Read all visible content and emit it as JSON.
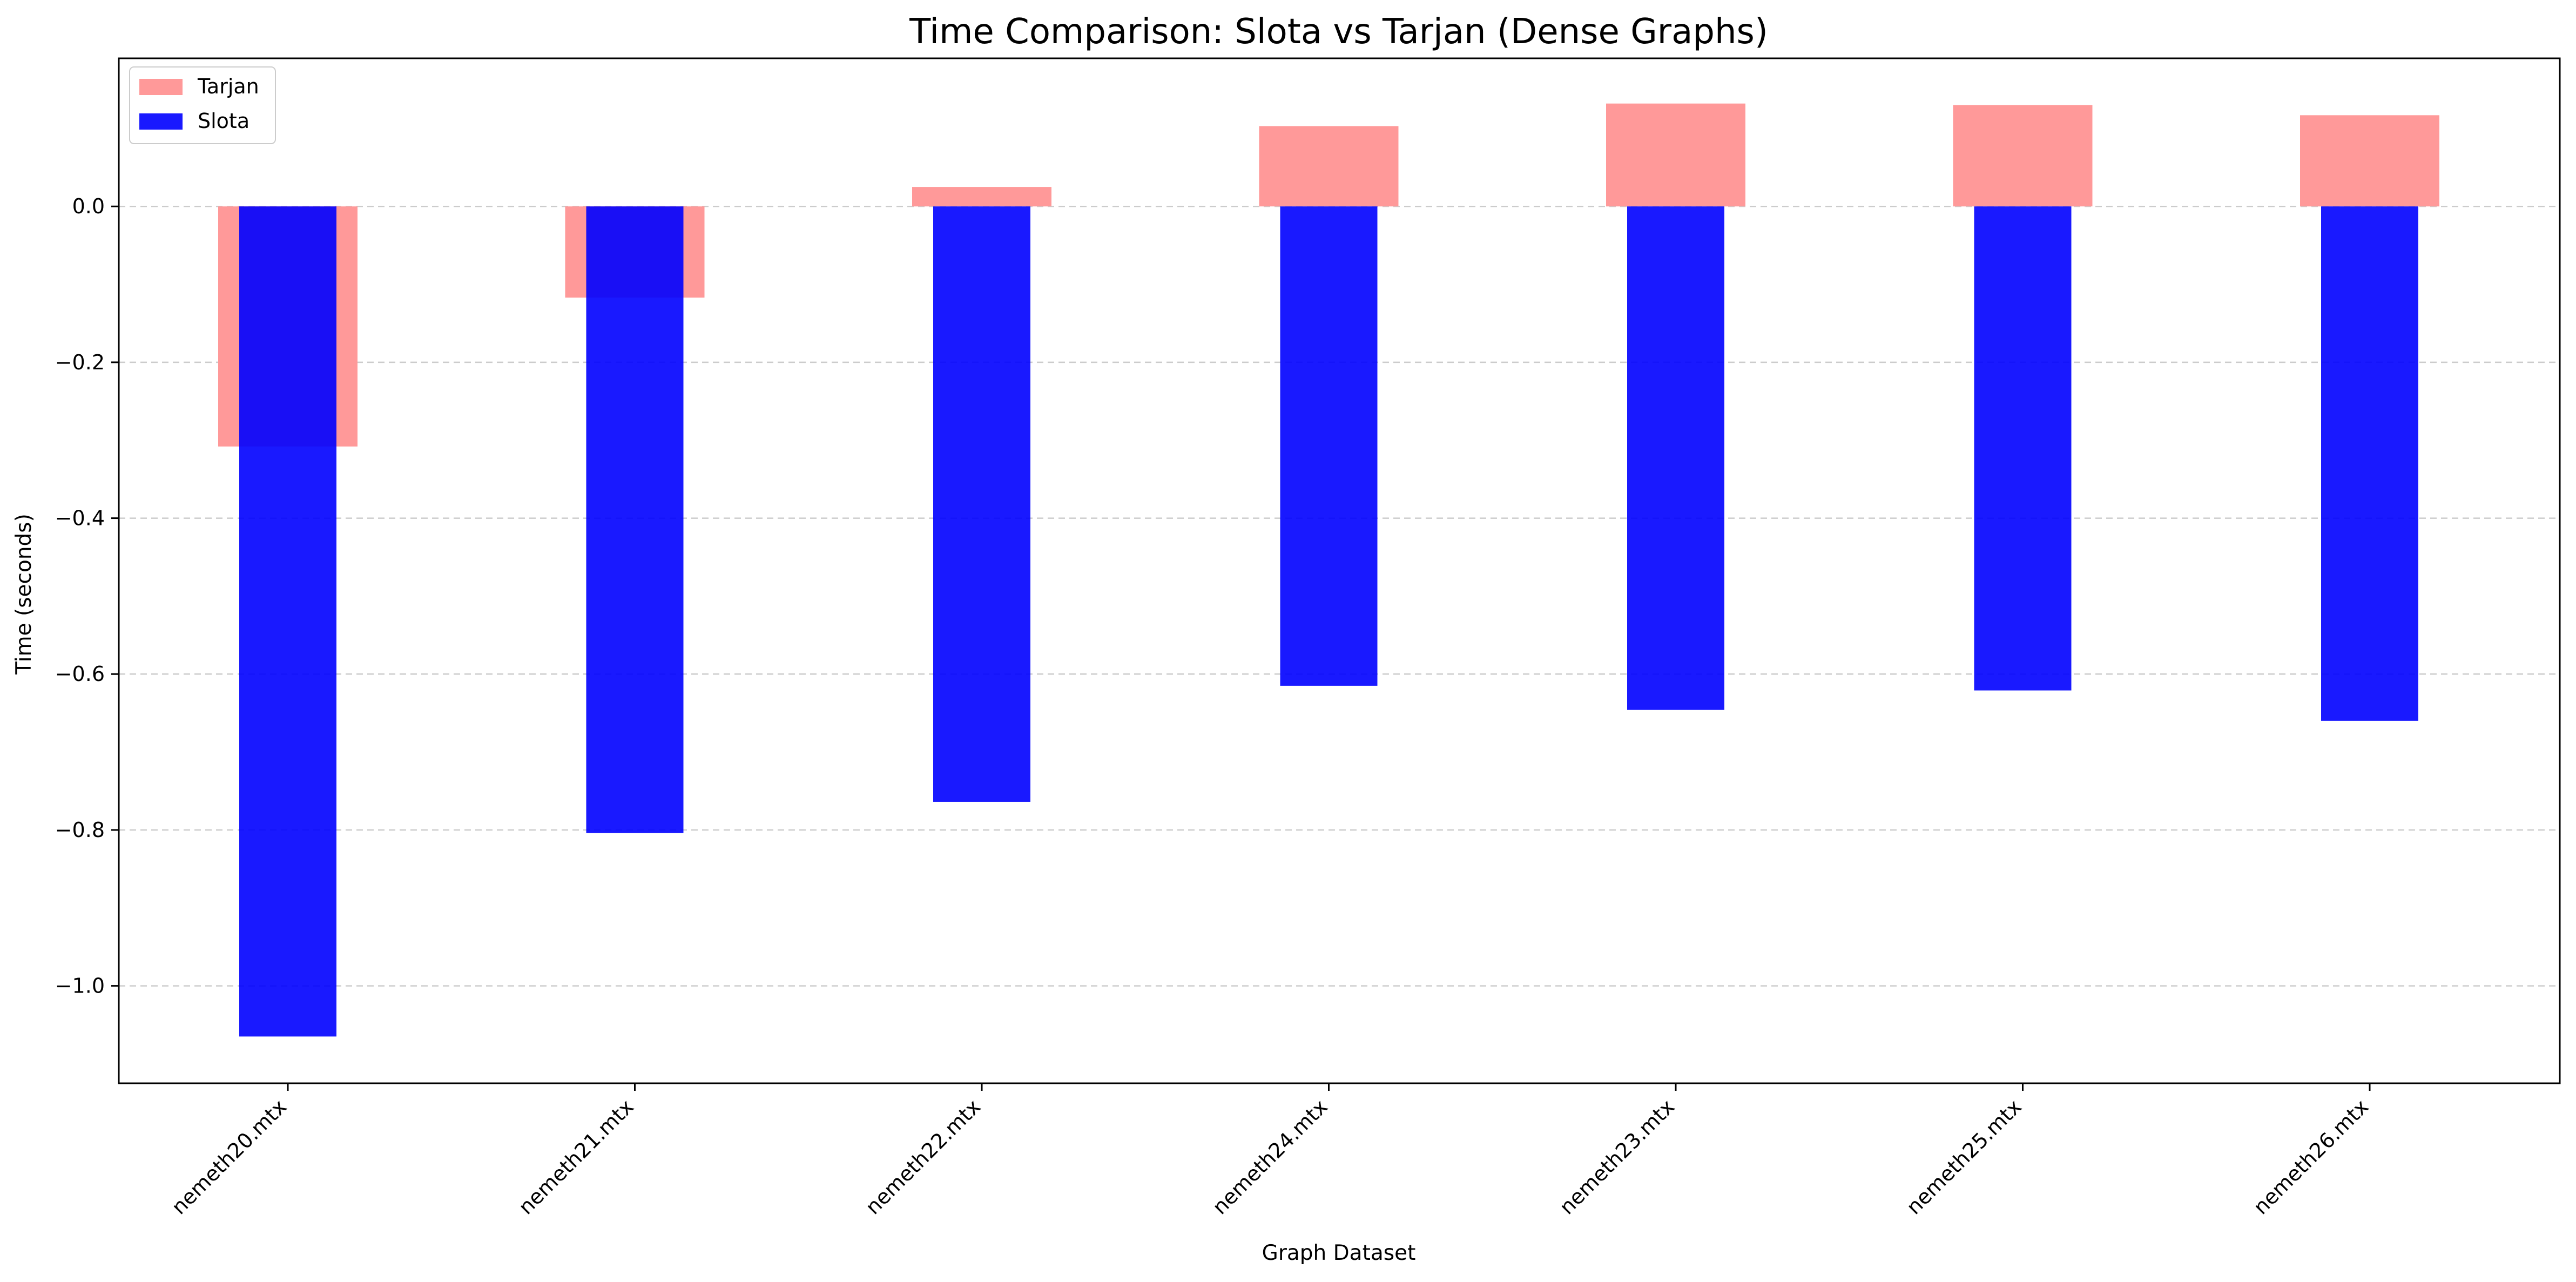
{
  "chart_data": {
    "type": "bar",
    "title": "Time Comparison: Slota vs Tarjan (Dense Graphs)",
    "xlabel": "Graph Dataset",
    "ylabel": "Time (seconds)",
    "categories": [
      "nemeth20.mtx",
      "nemeth21.mtx",
      "nemeth22.mtx",
      "nemeth24.mtx",
      "nemeth23.mtx",
      "nemeth25.mtx",
      "nemeth26.mtx"
    ],
    "series": [
      {
        "name": "Tarjan",
        "color": "#ff9999",
        "values": [
          -0.308,
          -0.117,
          0.025,
          0.103,
          0.132,
          0.13,
          0.117
        ]
      },
      {
        "name": "Slota",
        "color": "#0000ff",
        "values": [
          -1.065,
          -0.804,
          -0.764,
          -0.615,
          -0.646,
          -0.621,
          -0.66
        ]
      }
    ],
    "ylim": [
      -1.125,
      0.19
    ],
    "yticks": [
      0.0,
      -0.2,
      -0.4,
      -0.6,
      -0.8,
      -1.0
    ],
    "ytick_labels": [
      "0.0",
      "−0.2",
      "−0.4",
      "−0.6",
      "−0.8",
      "−1.0"
    ],
    "grid": "horizontal-dashed",
    "legend_position": "top-left"
  }
}
